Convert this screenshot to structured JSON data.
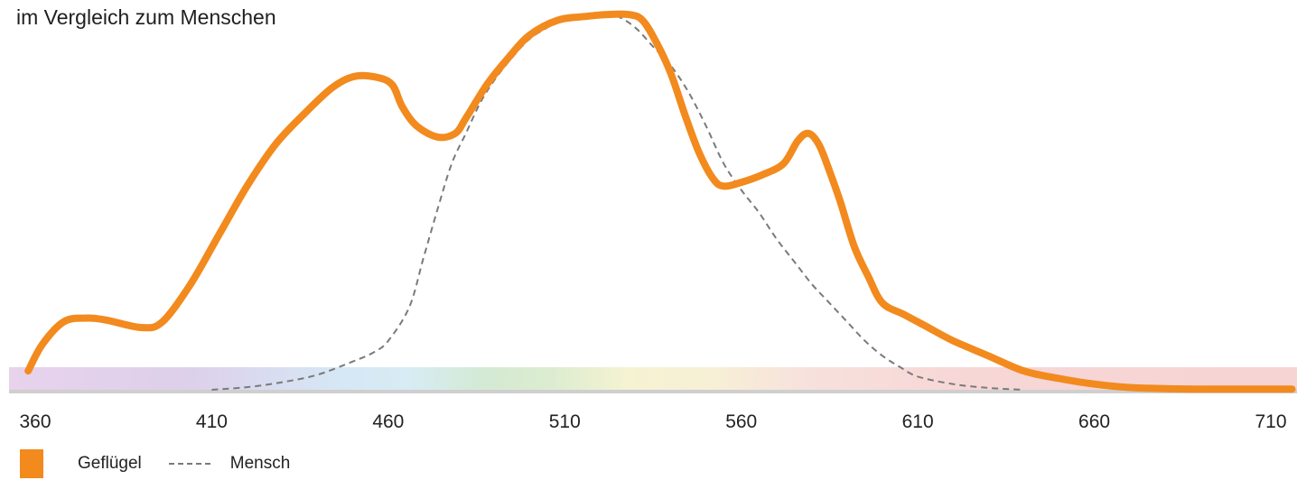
{
  "subtitle": "im Vergleich zum Menschen",
  "colors": {
    "poultry": "#f28a1e",
    "human": "#7a7a7a",
    "axis": "#cfcfcf"
  },
  "legend": [
    {
      "label": "Geflügel",
      "swatch": "box"
    },
    {
      "label": "Mensch",
      "swatch": "dashed-line"
    }
  ],
  "chart_data": {
    "type": "line",
    "title": "",
    "xlabel": "",
    "ylabel": "",
    "xlim": [
      358,
      716
    ],
    "ylim": [
      0,
      1
    ],
    "xticks": [
      360,
      410,
      460,
      510,
      560,
      610,
      660,
      710
    ],
    "grid": false,
    "legend_position": "bottom-left",
    "background": "visible-spectrum-band",
    "series": [
      {
        "name": "Geflügel",
        "style": "solid",
        "x": [
          358,
          362,
          368,
          374,
          380,
          390,
          396,
          404,
          412,
          420,
          428,
          436,
          444,
          450,
          456,
          461,
          464,
          468,
          474,
          479,
          482,
          488,
          494,
          500,
          508,
          516,
          522,
          528,
          532,
          536,
          540,
          544,
          548,
          552,
          555,
          560,
          566,
          572,
          576,
          579,
          582,
          585,
          588,
          592,
          596,
          600,
          606,
          612,
          620,
          630,
          640,
          650,
          660,
          670,
          680,
          690,
          700,
          716
        ],
        "y": [
          0.05,
          0.12,
          0.18,
          0.19,
          0.185,
          0.165,
          0.18,
          0.28,
          0.41,
          0.54,
          0.65,
          0.73,
          0.8,
          0.83,
          0.83,
          0.81,
          0.75,
          0.7,
          0.67,
          0.68,
          0.72,
          0.81,
          0.88,
          0.94,
          0.98,
          0.99,
          0.995,
          0.995,
          0.98,
          0.92,
          0.84,
          0.73,
          0.63,
          0.56,
          0.54,
          0.55,
          0.57,
          0.6,
          0.66,
          0.68,
          0.65,
          0.58,
          0.5,
          0.38,
          0.3,
          0.23,
          0.2,
          0.17,
          0.13,
          0.09,
          0.05,
          0.03,
          0.015,
          0.006,
          0.003,
          0.002,
          0.002,
          0.002
        ]
      },
      {
        "name": "Mensch",
        "style": "dashed",
        "x": [
          410,
          420,
          430,
          440,
          450,
          456,
          460,
          466,
          470,
          474,
          478,
          482,
          486,
          490,
          495,
          500,
          505,
          510,
          515,
          520,
          525,
          530,
          535,
          540,
          545,
          550,
          555,
          560,
          565,
          570,
          575,
          580,
          585,
          590,
          595,
          600,
          605,
          610,
          620,
          630,
          640
        ],
        "y": [
          0.0,
          0.007,
          0.02,
          0.04,
          0.075,
          0.1,
          0.13,
          0.22,
          0.35,
          0.48,
          0.6,
          0.68,
          0.76,
          0.82,
          0.88,
          0.93,
          0.96,
          0.985,
          0.995,
          1.0,
          0.99,
          0.96,
          0.91,
          0.86,
          0.79,
          0.7,
          0.6,
          0.53,
          0.47,
          0.4,
          0.34,
          0.28,
          0.23,
          0.18,
          0.13,
          0.09,
          0.06,
          0.035,
          0.015,
          0.005,
          0.0
        ]
      }
    ]
  }
}
